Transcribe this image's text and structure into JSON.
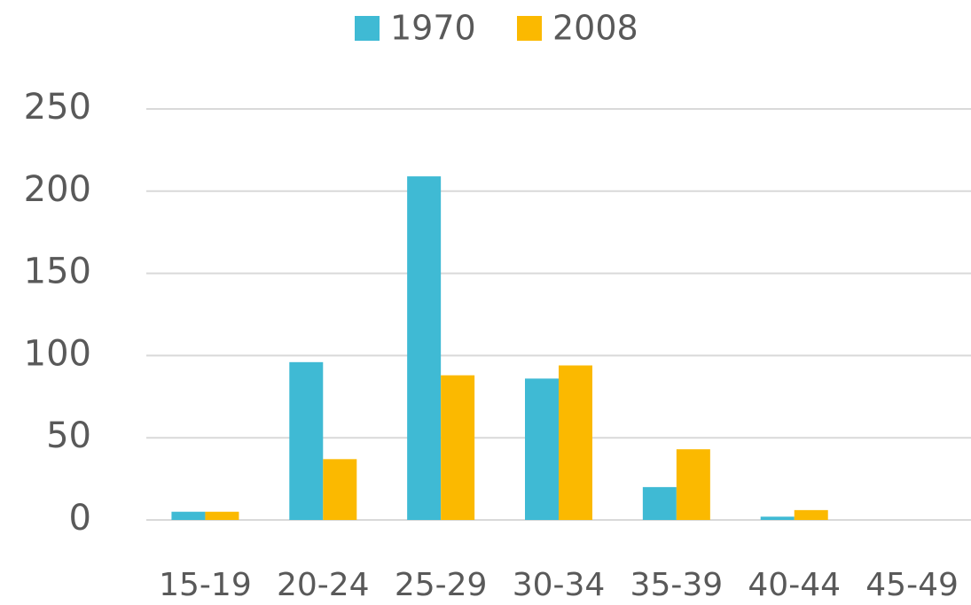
{
  "chart_data": {
    "type": "bar",
    "categories": [
      "15-19",
      "20-24",
      "25-29",
      "30-34",
      "35-39",
      "40-44",
      "45-49"
    ],
    "series": [
      {
        "name": "1970",
        "color": "#3fbad4",
        "values": [
          5,
          96,
          209,
          86,
          20,
          2,
          0
        ]
      },
      {
        "name": "2008",
        "color": "#fbb900",
        "values": [
          5,
          37,
          88,
          94,
          43,
          6,
          0
        ]
      }
    ],
    "ylim": [
      0,
      250
    ],
    "yticks": [
      0,
      50,
      100,
      150,
      200,
      250
    ],
    "grid": true,
    "legend": "top"
  }
}
